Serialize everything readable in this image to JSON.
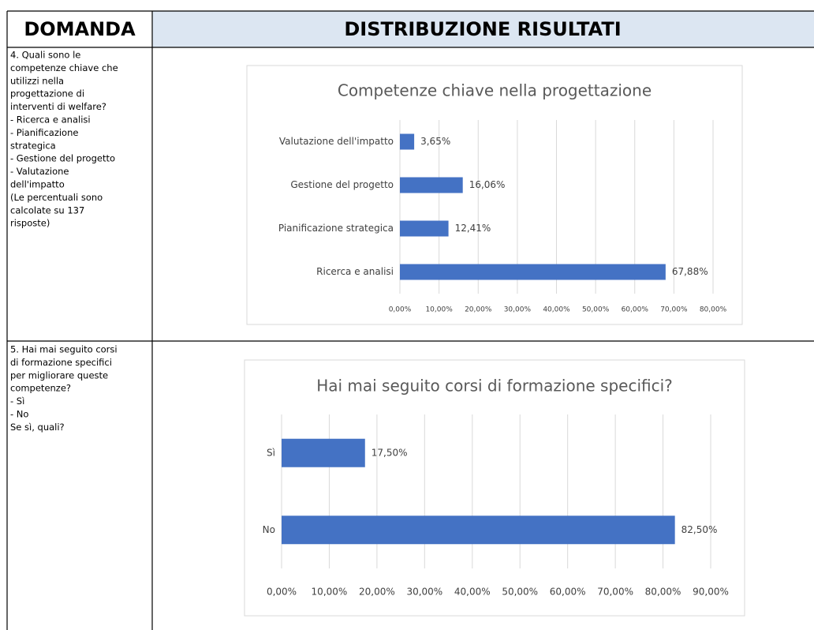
{
  "table": {
    "header": [
      "DOMANDA",
      "DISTRIBUZIONE RISULTATI"
    ],
    "rows": [
      {
        "question": [
          "4. Quali sono le",
          "competenze chiave che",
          "utilizzi nella",
          "progettazione di",
          "interventi di welfare?",
          "- Ricerca e analisi",
          "- Pianificazione",
          "strategica",
          "- Gestione del progetto",
          "- Valutazione",
          "dell'impatto",
          "(Le percentuali sono",
          "calcolate su 137",
          "risposte)"
        ],
        "chart": {
          "type": "bar",
          "orientation": "horizontal",
          "title": "Competenze chiave nella progettazione",
          "categories": [
            "Valutazione dell'impatto",
            "Gestione del progetto",
            "Pianificazione strategica",
            "Ricerca e analisi"
          ],
          "values": [
            3.65,
            16.06,
            12.41,
            67.88
          ],
          "value_labels": [
            "3,65%",
            "16,06%",
            "12,41%",
            "67,88%"
          ],
          "color": "#4472c4",
          "grid": true,
          "xlim": [
            0,
            80
          ],
          "xticks": [
            {
              "value": 0,
              "label": "0,00%"
            },
            {
              "value": 10,
              "label": "10,00%"
            },
            {
              "value": 20,
              "label": "20,00%"
            },
            {
              "value": 30,
              "label": "30,00%"
            },
            {
              "value": 40,
              "label": "40,00%"
            },
            {
              "value": 50,
              "label": "50,00%"
            },
            {
              "value": 60,
              "label": "60,00%"
            },
            {
              "value": 70,
              "label": "70,00%"
            },
            {
              "value": 80,
              "label": "80,00%"
            }
          ]
        }
      },
      {
        "question": [
          "5. Hai mai seguito corsi",
          "di formazione specifici",
          "per migliorare queste",
          "competenze?",
          "- Sì",
          "- No",
          "Se sì, quali?"
        ],
        "chart": {
          "type": "bar",
          "orientation": "horizontal",
          "title": "Hai mai seguito corsi di formazione specifici?",
          "categories": [
            "Sì",
            "No"
          ],
          "values": [
            17.5,
            82.5
          ],
          "value_labels": [
            "17,50%",
            "82,50%"
          ],
          "color": "#4472c4",
          "grid": true,
          "xlim": [
            0,
            90
          ],
          "xticks": [
            {
              "value": 0,
              "label": "0,00%"
            },
            {
              "value": 10,
              "label": "10,00%"
            },
            {
              "value": 20,
              "label": "20,00%"
            },
            {
              "value": 30,
              "label": "30,00%"
            },
            {
              "value": 40,
              "label": "40,00%"
            },
            {
              "value": 50,
              "label": "50,00%"
            },
            {
              "value": 60,
              "label": "60,00%"
            },
            {
              "value": 70,
              "label": "70,00%"
            },
            {
              "value": 80,
              "label": "80,00%"
            },
            {
              "value": 90,
              "label": "90,00%"
            }
          ]
        }
      }
    ]
  }
}
